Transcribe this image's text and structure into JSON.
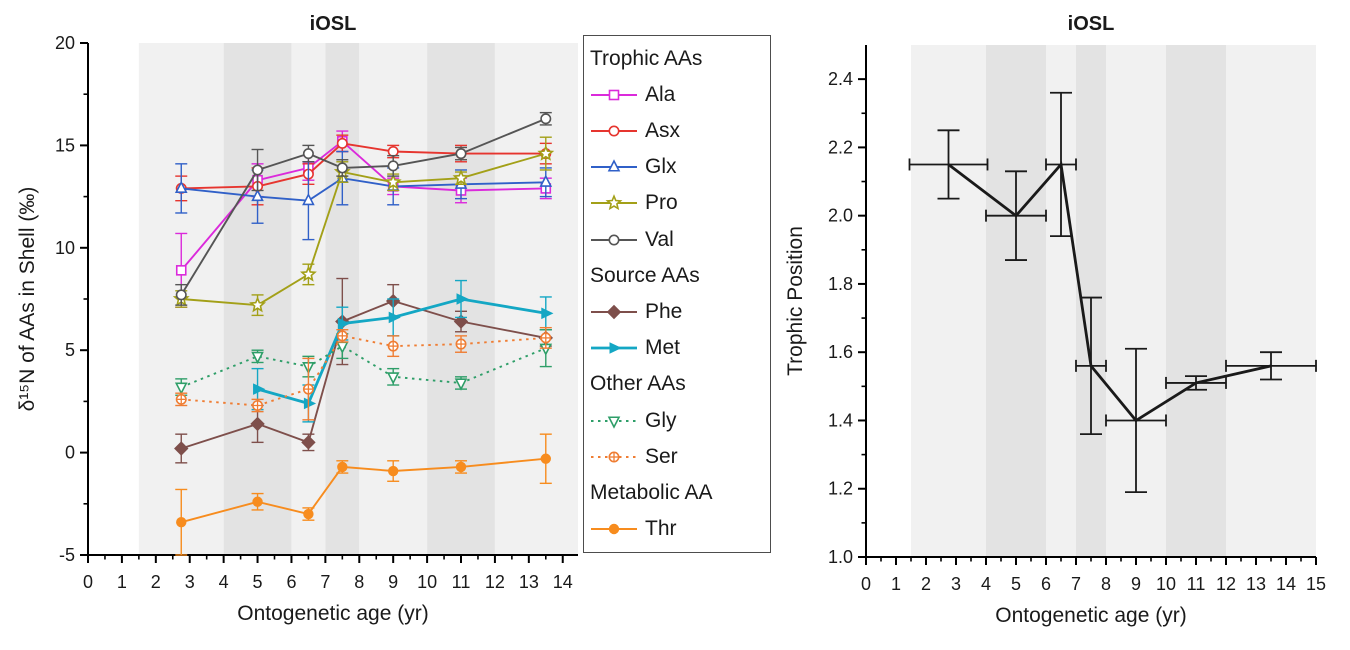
{
  "figure": {
    "background": "#ffffff",
    "axis_color": "#000000",
    "text_color": "#1a1a1a",
    "band_colors": {
      "light": "#f1f1f1",
      "dark": "#e3e3e3"
    }
  },
  "chart_data": [
    {
      "id": "aa_d15n",
      "type": "line",
      "title": "iOSL",
      "xlabel": "Ontogenetic age (yr)",
      "ylabel": "δ¹⁵N of AAs in Shell (‰)",
      "xlim": [
        0,
        14.45
      ],
      "ylim": [
        -5,
        20
      ],
      "x_ticks": [
        0,
        1,
        2,
        3,
        4,
        5,
        6,
        7,
        8,
        9,
        10,
        11,
        12,
        13,
        14
      ],
      "x_minor_step": 0.5,
      "y_ticks": [
        -5,
        0,
        5,
        10,
        15,
        20
      ],
      "y_minor_step": 2.5,
      "y_tick_decimals": 0,
      "legend_position": "right-outside",
      "grid": false,
      "bands": [
        {
          "from": 1.5,
          "to": 4,
          "shade": "light"
        },
        {
          "from": 4,
          "to": 6,
          "shade": "dark"
        },
        {
          "from": 6,
          "to": 7,
          "shade": "light"
        },
        {
          "from": 7,
          "to": 8,
          "shade": "dark"
        },
        {
          "from": 8,
          "to": 10,
          "shade": "light"
        },
        {
          "from": 10,
          "to": 12,
          "shade": "dark"
        },
        {
          "from": 12,
          "to": 14.45,
          "shade": "light"
        }
      ],
      "x": [
        2.75,
        5,
        6.5,
        7.5,
        9,
        11,
        13.5
      ],
      "series": [
        {
          "name": "Ala",
          "group": "Trophic AAs",
          "color": "#DB2ADB",
          "marker": "square-open",
          "line": "solid",
          "y": [
            8.9,
            13.3,
            13.9,
            15.2,
            13.0,
            12.8,
            12.9
          ],
          "yerr": [
            1.8,
            0.8,
            0.6,
            0.5,
            0.4,
            0.6,
            0.5
          ]
        },
        {
          "name": "Asx",
          "group": "Trophic AAs",
          "color": "#E6352F",
          "marker": "circle-open",
          "line": "solid",
          "y": [
            12.9,
            13.0,
            13.6,
            15.1,
            14.7,
            14.6,
            14.6
          ],
          "yerr": [
            0.6,
            0.9,
            0.5,
            0.4,
            0.3,
            0.4,
            0.5
          ]
        },
        {
          "name": "Glx",
          "group": "Trophic AAs",
          "color": "#3060C8",
          "marker": "triangle-up-open",
          "line": "solid",
          "y": [
            12.9,
            12.5,
            12.3,
            13.4,
            13.0,
            13.1,
            13.2
          ],
          "yerr": [
            1.2,
            1.3,
            1.9,
            1.3,
            0.9,
            0.7,
            0.7
          ]
        },
        {
          "name": "Pro",
          "group": "Trophic AAs",
          "color": "#A3A018",
          "marker": "star-open",
          "line": "solid",
          "y": [
            7.5,
            7.2,
            8.7,
            13.7,
            13.2,
            13.4,
            14.6
          ],
          "yerr": [
            0.4,
            0.5,
            0.5,
            0.5,
            0.4,
            0.3,
            0.8
          ]
        },
        {
          "name": "Val",
          "group": "Trophic AAs",
          "color": "#555555",
          "marker": "circle-open",
          "line": "solid",
          "y": [
            7.7,
            13.8,
            14.6,
            13.9,
            14.0,
            14.6,
            16.3
          ],
          "yerr": [
            0.5,
            1.0,
            0.4,
            0.4,
            0.5,
            0.3,
            0.3
          ]
        },
        {
          "name": "Phe",
          "group": "Source AAs",
          "color": "#7E4F4B",
          "marker": "diamond-filled",
          "line": "solid",
          "y": [
            0.2,
            1.4,
            0.5,
            6.4,
            7.4,
            6.4,
            5.6
          ],
          "yerr": [
            0.7,
            0.9,
            0.4,
            2.1,
            0.8,
            0.5,
            0.4
          ]
        },
        {
          "name": "Met",
          "group": "Source AAs",
          "color": "#14A7C4",
          "marker": "triangle-right-filled",
          "line": "solid",
          "line_width": 2.8,
          "x": [
            5,
            6.5,
            7.5,
            9,
            11,
            13.5
          ],
          "y": [
            3.1,
            2.4,
            6.3,
            6.6,
            7.5,
            6.8
          ],
          "yerr": [
            1.0,
            0.9,
            0.8,
            0.9,
            0.9,
            0.8
          ]
        },
        {
          "name": "Gly",
          "group": "Other AAs",
          "color": "#2E9E68",
          "marker": "triangle-down-open",
          "line": "dotted",
          "y": [
            3.2,
            4.7,
            4.2,
            5.2,
            3.7,
            3.4,
            5.1
          ],
          "yerr": [
            0.4,
            0.3,
            0.5,
            0.6,
            0.4,
            0.3,
            0.9
          ]
        },
        {
          "name": "Ser",
          "group": "Other AAs",
          "color": "#EF7D33",
          "marker": "circle-plus-open",
          "line": "dotted",
          "y": [
            2.6,
            2.3,
            3.1,
            5.7,
            5.2,
            5.3,
            5.6
          ],
          "yerr": [
            0.3,
            0.3,
            1.5,
            0.3,
            0.5,
            0.4,
            0.5
          ]
        },
        {
          "name": "Thr",
          "group": "Metabolic AA",
          "color": "#F78C1E",
          "marker": "circle-filled",
          "line": "solid",
          "y": [
            -3.4,
            -2.4,
            -3.0,
            -0.7,
            -0.9,
            -0.7,
            -0.3
          ],
          "yerr": [
            1.6,
            0.4,
            0.3,
            0.3,
            0.5,
            0.3,
            1.2
          ]
        }
      ]
    },
    {
      "id": "trophic_position",
      "type": "line",
      "title": "iOSL",
      "xlabel": "Ontogenetic age (yr)",
      "ylabel": "Trophic Position",
      "xlim": [
        0,
        15
      ],
      "ylim": [
        1.0,
        2.5
      ],
      "x_ticks": [
        0,
        1,
        2,
        3,
        4,
        5,
        6,
        7,
        8,
        9,
        10,
        11,
        12,
        13,
        14,
        15
      ],
      "x_minor_step": 0.5,
      "y_ticks": [
        1.0,
        1.2,
        1.4,
        1.6,
        1.8,
        2.0,
        2.2,
        2.4
      ],
      "y_minor_step": 0.1,
      "y_tick_decimals": 1,
      "legend_position": "none",
      "grid": false,
      "bands": [
        {
          "from": 1.5,
          "to": 4,
          "shade": "light"
        },
        {
          "from": 4,
          "to": 6,
          "shade": "dark"
        },
        {
          "from": 6,
          "to": 7,
          "shade": "light"
        },
        {
          "from": 7,
          "to": 8,
          "shade": "dark"
        },
        {
          "from": 8,
          "to": 10,
          "shade": "light"
        },
        {
          "from": 10,
          "to": 12,
          "shade": "dark"
        },
        {
          "from": 12,
          "to": 15,
          "shade": "light"
        }
      ],
      "x": [
        2.75,
        5,
        6.5,
        7.5,
        9,
        11,
        13.5
      ],
      "series": [
        {
          "name": "Trophic position",
          "color": "#1a1a1a",
          "marker": "none",
          "line": "solid",
          "line_width": 2.8,
          "x": [
            2.75,
            5,
            6.5,
            7.5,
            9,
            11,
            13.5
          ],
          "y": [
            2.15,
            2.0,
            2.15,
            1.56,
            1.4,
            1.51,
            1.56
          ],
          "yerr": [
            0.1,
            0.13,
            0.21,
            0.2,
            0.21,
            0.02,
            0.04
          ],
          "xerr": [
            1.3,
            1.0,
            0.5,
            0.5,
            1.0,
            1.0,
            1.5
          ]
        }
      ]
    }
  ],
  "legend": {
    "groups": [
      {
        "header": "Trophic AAs",
        "items": [
          "Ala",
          "Asx",
          "Glx",
          "Pro",
          "Val"
        ]
      },
      {
        "header": "Source AAs",
        "items": [
          "Phe",
          "Met"
        ]
      },
      {
        "header": "Other AAs",
        "items": [
          "Gly",
          "Ser"
        ]
      },
      {
        "header": "Metabolic AA",
        "items": [
          "Thr"
        ]
      }
    ]
  }
}
